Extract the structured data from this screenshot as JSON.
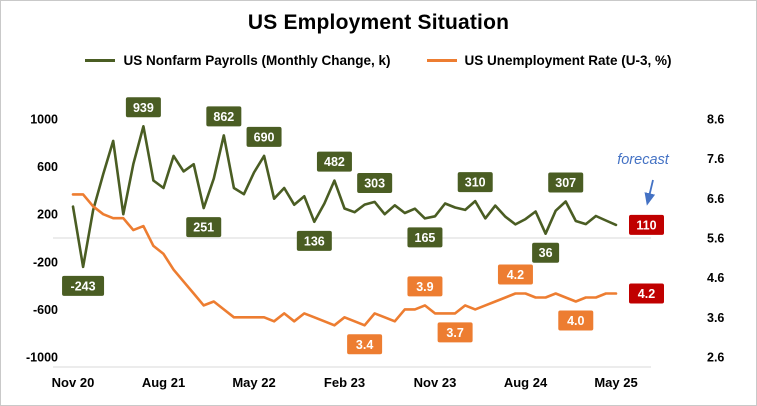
{
  "title": "US Employment Situation",
  "legend": [
    {
      "label": "US Nonfarm Payrolls (Monthly Change, k)",
      "color": "#4a5d23"
    },
    {
      "label": "US Unemployment Rate (U-3, %)",
      "color": "#ED7D31"
    }
  ],
  "annotation": {
    "text": "forecast"
  },
  "colors": {
    "payrolls_green": "#4a5d23",
    "unemployment_orange": "#ED7D31",
    "forecast_red": "#C00000",
    "annotation_blue": "#4472C4",
    "grid_gray": "#d9d9d9",
    "axis_text": "#000000",
    "label_text": "#ffffff"
  },
  "chart_data": {
    "type": "line",
    "title": "US Employment Situation",
    "n_points": 55,
    "x_ticks": [
      {
        "label": "Nov 20",
        "i": 0
      },
      {
        "label": "Aug 21",
        "i": 9
      },
      {
        "label": "May 22",
        "i": 18
      },
      {
        "label": "Feb 23",
        "i": 27
      },
      {
        "label": "Nov 23",
        "i": 36
      },
      {
        "label": "Aug 24",
        "i": 45
      },
      {
        "label": "May 25",
        "i": 54
      }
    ],
    "y_left": {
      "lim": [
        -1000,
        1000
      ],
      "ticks": [
        1000,
        600,
        200,
        -200,
        -600,
        -1000
      ]
    },
    "y_right": {
      "lim": [
        2.6,
        8.6
      ],
      "ticks": [
        8.6,
        7.6,
        6.6,
        5.6,
        4.6,
        3.6,
        2.6
      ]
    },
    "series": [
      {
        "name": "US Nonfarm Payrolls (Monthly Change, k)",
        "axis": "left",
        "color": "#4a5d23",
        "values": [
          264,
          -243,
          233,
          536,
          816,
          200,
          620,
          939,
          483,
          420,
          690,
          560,
          620,
          251,
          500,
          862,
          420,
          368,
          550,
          690,
          330,
          420,
          280,
          350,
          136,
          290,
          482,
          248,
          217,
          281,
          303,
          200,
          275,
          210,
          246,
          165,
          182,
          290,
          256,
          236,
          310,
          165,
          272,
          179,
          114,
          159,
          223,
          36,
          229,
          307,
          143,
          117,
          185,
          147,
          110
        ]
      },
      {
        "name": "US Unemployment Rate (U-3, %)",
        "axis": "right",
        "color": "#ED7D31",
        "values": [
          6.7,
          6.7,
          6.4,
          6.2,
          6.1,
          6.1,
          5.8,
          5.9,
          5.4,
          5.2,
          4.8,
          4.5,
          4.2,
          3.9,
          4.0,
          3.8,
          3.6,
          3.6,
          3.6,
          3.6,
          3.5,
          3.7,
          3.5,
          3.7,
          3.6,
          3.5,
          3.4,
          3.6,
          3.5,
          3.4,
          3.7,
          3.6,
          3.5,
          3.8,
          3.8,
          3.9,
          3.7,
          3.7,
          3.7,
          3.9,
          3.8,
          3.9,
          4.0,
          4.1,
          4.2,
          4.2,
          4.1,
          4.1,
          4.2,
          4.1,
          4.0,
          4.1,
          4.1,
          4.2,
          4.2
        ]
      }
    ],
    "point_labels": [
      {
        "series": 0,
        "i": 1,
        "text": "-243",
        "pos": "below"
      },
      {
        "series": 0,
        "i": 7,
        "text": "939",
        "pos": "above"
      },
      {
        "series": 0,
        "i": 13,
        "text": "251",
        "pos": "below"
      },
      {
        "series": 0,
        "i": 15,
        "text": "862",
        "pos": "above"
      },
      {
        "series": 0,
        "i": 19,
        "text": "690",
        "pos": "above"
      },
      {
        "series": 0,
        "i": 24,
        "text": "136",
        "pos": "below"
      },
      {
        "series": 0,
        "i": 26,
        "text": "482",
        "pos": "above"
      },
      {
        "series": 0,
        "i": 30,
        "text": "303",
        "pos": "above"
      },
      {
        "series": 0,
        "i": 35,
        "text": "165",
        "pos": "below"
      },
      {
        "series": 0,
        "i": 40,
        "text": "310",
        "pos": "above"
      },
      {
        "series": 0,
        "i": 47,
        "text": "36",
        "pos": "below"
      },
      {
        "series": 0,
        "i": 49,
        "text": "307",
        "pos": "above"
      },
      {
        "series": 0,
        "i": 54,
        "text": "110",
        "pos": "right",
        "red": true
      },
      {
        "series": 1,
        "i": 29,
        "text": "3.4",
        "pos": "below"
      },
      {
        "series": 1,
        "i": 35,
        "text": "3.9",
        "pos": "above"
      },
      {
        "series": 1,
        "i": 38,
        "text": "3.7",
        "pos": "below"
      },
      {
        "series": 1,
        "i": 44,
        "text": "4.2",
        "pos": "above"
      },
      {
        "series": 1,
        "i": 50,
        "text": "4.0",
        "pos": "below"
      },
      {
        "series": 1,
        "i": 54,
        "text": "4.2",
        "pos": "right",
        "red": true
      }
    ],
    "forecast_annotation": {
      "text": "forecast",
      "points_to_index": 54
    }
  }
}
